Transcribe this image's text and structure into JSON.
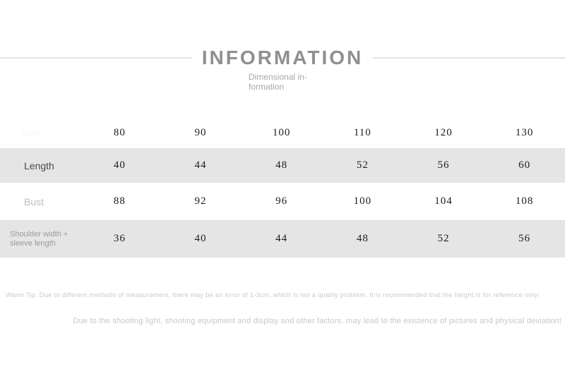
{
  "header": {
    "title": "INFORMATION",
    "subtitle": "Dimensional in-formation"
  },
  "size_table": {
    "size_row": {
      "label": "Size",
      "values": [
        "80",
        "90",
        "100",
        "110",
        "120",
        "130"
      ]
    },
    "rows": [
      {
        "label": "Length",
        "values": [
          "40",
          "44",
          "48",
          "52",
          "56",
          "60"
        ]
      },
      {
        "label": "Bust",
        "values": [
          "88",
          "92",
          "96",
          "100",
          "104",
          "108"
        ]
      },
      {
        "label": "Shoulder width + sleeve length",
        "values": [
          "36",
          "40",
          "44",
          "48",
          "52",
          "56"
        ]
      }
    ]
  },
  "notes": {
    "warm_tip": "Warm Tip: Due to different methods of measurement, there may be an error of 1-3cm, which is not a quality problem. It is recommended that the height is for reference only!",
    "disclaimer": "Due to the shooting light, shooting equipment and display and other factors, may lead to the existence of pictures and physical deviation!"
  },
  "colors": {
    "band_gray": "#e5e5e5",
    "title_gray": "#8f8f8f",
    "number_dark": "#1b1b1b",
    "note_gray": "#c9c9c9"
  }
}
